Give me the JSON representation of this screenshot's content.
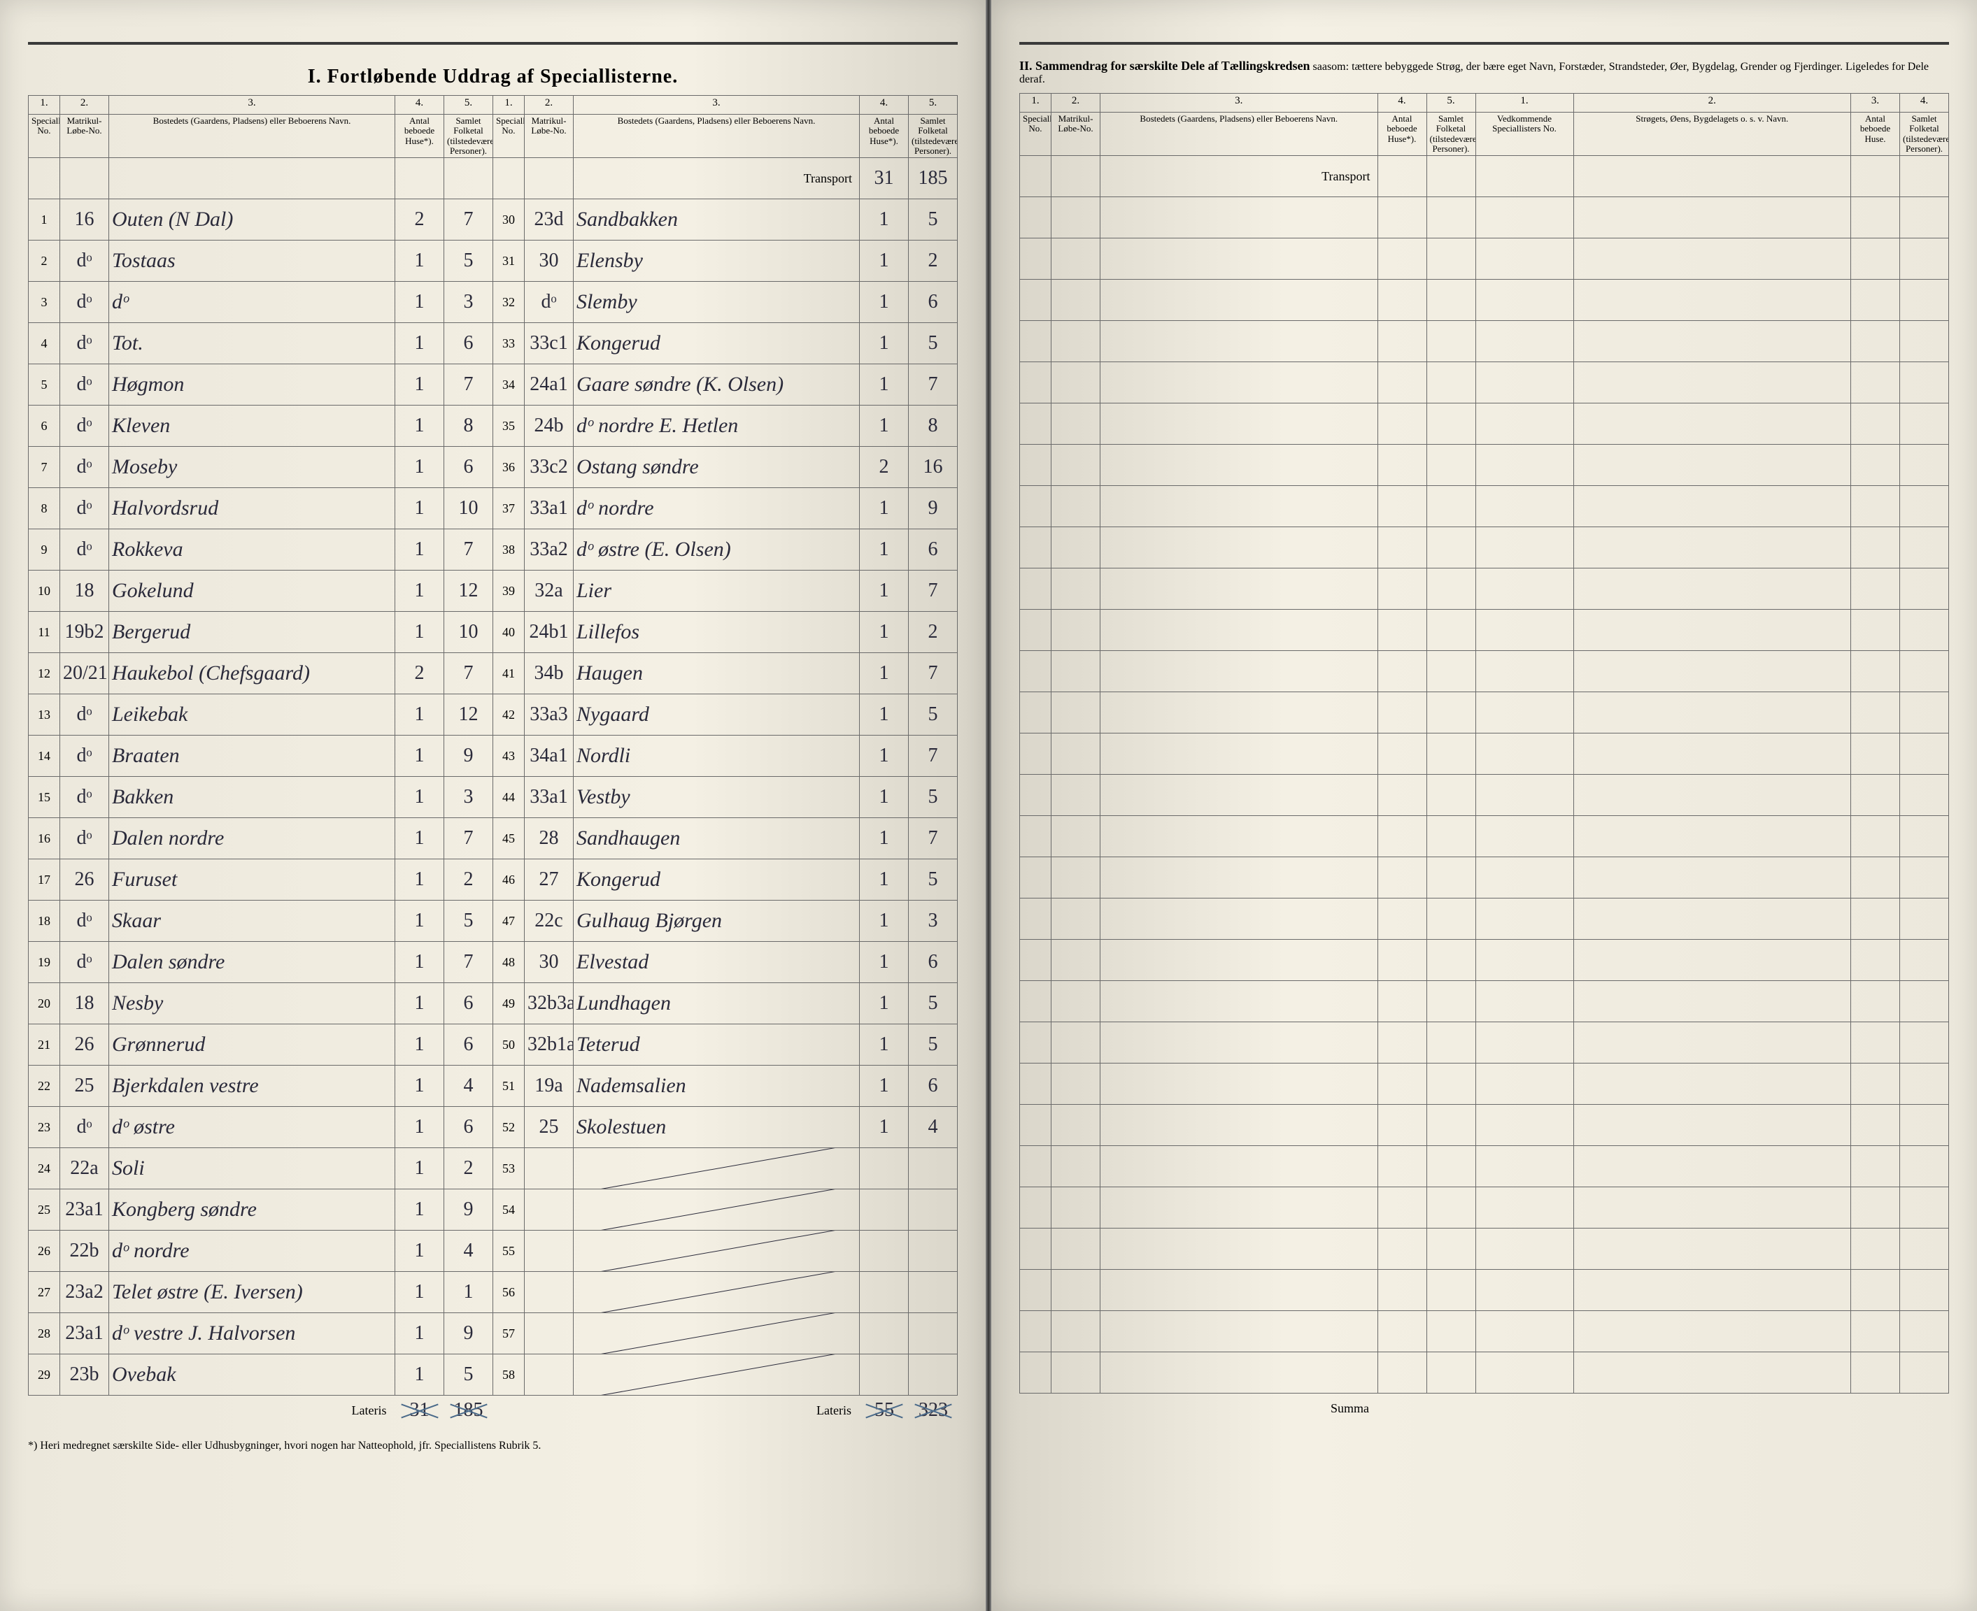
{
  "title_left": "I. Fortløbende Uddrag af Speciallisterne.",
  "title_right_bold": "II. Sammendrag for særskilte Dele af Tællingskredsen",
  "title_right_rest": " saasom: tættere bebyggede Strøg, der bære eget Navn, Forstæder, Strandsteder, Øer, Bygdelag, Grender og Fjerdinger. Ligeledes for Dele deraf.",
  "headers": {
    "c1": "Speciallisternes No.",
    "c2": "Matrikul-Løbe-No.",
    "c3": "Bostedets (Gaardens, Pladsens) eller Beboerens Navn.",
    "c4": "Antal beboede Huse*).",
    "c5": "Samlet Folketal (tilstedeværende Personer).",
    "r1": "Vedkommende Speciallisters No.",
    "r2": "Strøgets, Øens, Bygdelagets o. s. v. Navn.",
    "r3": "Antal beboede Huse.",
    "r4": "Samlet Folketal (tilstedeværende Personer)."
  },
  "transport_label": "Transport",
  "transport_c4": "31",
  "transport_c5": "185",
  "lateris_label": "Lateris",
  "summa_label": "Summa",
  "lateris_left_c4": "31",
  "lateris_left_c5": "185",
  "lateris_mid_c4": "55",
  "lateris_mid_c5": "323",
  "footnote": "*) Heri medregnet særskilte Side- eller Udhusbygninger, hvori nogen har Natteophold, jfr. Speciallistens Rubrik 5.",
  "rows_left": [
    {
      "n": "1",
      "m": "16",
      "name": "Outen (N Dal)",
      "h": "2",
      "p": "7"
    },
    {
      "n": "2",
      "m": "dᵒ",
      "name": "Tostaas",
      "h": "1",
      "p": "5"
    },
    {
      "n": "3",
      "m": "dᵒ",
      "name": "dᵒ",
      "h": "1",
      "p": "3"
    },
    {
      "n": "4",
      "m": "dᵒ",
      "name": "Tot.",
      "h": "1",
      "p": "6"
    },
    {
      "n": "5",
      "m": "dᵒ",
      "name": "Høgmon",
      "h": "1",
      "p": "7"
    },
    {
      "n": "6",
      "m": "dᵒ",
      "name": "Kleven",
      "h": "1",
      "p": "8"
    },
    {
      "n": "7",
      "m": "dᵒ",
      "name": "Moseby",
      "h": "1",
      "p": "6"
    },
    {
      "n": "8",
      "m": "dᵒ",
      "name": "Halvordsrud",
      "h": "1",
      "p": "10"
    },
    {
      "n": "9",
      "m": "dᵒ",
      "name": "Rokkeva",
      "h": "1",
      "p": "7"
    },
    {
      "n": "10",
      "m": "18",
      "name": "Gokelund",
      "h": "1",
      "p": "12"
    },
    {
      "n": "11",
      "m": "19b2",
      "name": "Bergerud",
      "h": "1",
      "p": "10"
    },
    {
      "n": "12",
      "m": "20/21",
      "name": "Haukebol (Chefsgaard)",
      "h": "2",
      "p": "7"
    },
    {
      "n": "13",
      "m": "dᵒ",
      "name": "Leikebak",
      "h": "1",
      "p": "12"
    },
    {
      "n": "14",
      "m": "dᵒ",
      "name": "Braaten",
      "h": "1",
      "p": "9"
    },
    {
      "n": "15",
      "m": "dᵒ",
      "name": "Bakken",
      "h": "1",
      "p": "3"
    },
    {
      "n": "16",
      "m": "dᵒ",
      "name": "Dalen nordre",
      "h": "1",
      "p": "7"
    },
    {
      "n": "17",
      "m": "26",
      "name": "Furuset",
      "h": "1",
      "p": "2"
    },
    {
      "n": "18",
      "m": "dᵒ",
      "name": "Skaar",
      "h": "1",
      "p": "5"
    },
    {
      "n": "19",
      "m": "dᵒ",
      "name": "Dalen søndre",
      "h": "1",
      "p": "7"
    },
    {
      "n": "20",
      "m": "18",
      "name": "Nesby",
      "h": "1",
      "p": "6"
    },
    {
      "n": "21",
      "m": "26",
      "name": "Grønnerud",
      "h": "1",
      "p": "6"
    },
    {
      "n": "22",
      "m": "25",
      "name": "Bjerkdalen vestre",
      "h": "1",
      "p": "4"
    },
    {
      "n": "23",
      "m": "dᵒ",
      "name": "dᵒ østre",
      "h": "1",
      "p": "6"
    },
    {
      "n": "24",
      "m": "22a",
      "name": "Soli",
      "h": "1",
      "p": "2"
    },
    {
      "n": "25",
      "m": "23a1",
      "name": "Kongberg søndre",
      "h": "1",
      "p": "9"
    },
    {
      "n": "26",
      "m": "22b",
      "name": "dᵒ nordre",
      "h": "1",
      "p": "4"
    },
    {
      "n": "27",
      "m": "23a2",
      "name": "Telet østre (E. Iversen)",
      "h": "1",
      "p": "1"
    },
    {
      "n": "28",
      "m": "23a1",
      "name": "dᵒ vestre J. Halvorsen",
      "h": "1",
      "p": "9"
    },
    {
      "n": "29",
      "m": "23b",
      "name": "Ovebak",
      "h": "1",
      "p": "5"
    }
  ],
  "rows_mid": [
    {
      "n": "30",
      "m": "23d",
      "name": "Sandbakken",
      "h": "1",
      "p": "5"
    },
    {
      "n": "31",
      "m": "30",
      "name": "Elensby",
      "h": "1",
      "p": "2"
    },
    {
      "n": "32",
      "m": "dᵒ",
      "name": "Slemby",
      "h": "1",
      "p": "6"
    },
    {
      "n": "33",
      "m": "33c1",
      "name": "Kongerud",
      "h": "1",
      "p": "5"
    },
    {
      "n": "34",
      "m": "24a1",
      "name": "Gaare søndre (K. Olsen)",
      "h": "1",
      "p": "7"
    },
    {
      "n": "35",
      "m": "24b",
      "name": "dᵒ nordre E. Hetlen",
      "h": "1",
      "p": "8"
    },
    {
      "n": "36",
      "m": "33c2",
      "name": "Ostang søndre",
      "h": "2",
      "p": "16"
    },
    {
      "n": "37",
      "m": "33a1",
      "name": "dᵒ nordre",
      "h": "1",
      "p": "9"
    },
    {
      "n": "38",
      "m": "33a2",
      "name": "dᵒ østre (E. Olsen)",
      "h": "1",
      "p": "6"
    },
    {
      "n": "39",
      "m": "32a",
      "name": "Lier",
      "h": "1",
      "p": "7"
    },
    {
      "n": "40",
      "m": "24b1",
      "name": "Lillefos",
      "h": "1",
      "p": "2"
    },
    {
      "n": "41",
      "m": "34b",
      "name": "Haugen",
      "h": "1",
      "p": "7"
    },
    {
      "n": "42",
      "m": "33a3",
      "name": "Nygaard",
      "h": "1",
      "p": "5"
    },
    {
      "n": "43",
      "m": "34a1",
      "name": "Nordli",
      "h": "1",
      "p": "7"
    },
    {
      "n": "44",
      "m": "33a1",
      "name": "Vestby",
      "h": "1",
      "p": "5"
    },
    {
      "n": "45",
      "m": "28",
      "name": "Sandhaugen",
      "h": "1",
      "p": "7"
    },
    {
      "n": "46",
      "m": "27",
      "name": "Kongerud",
      "h": "1",
      "p": "5"
    },
    {
      "n": "47",
      "m": "22c",
      "name": "Gulhaug Bjørgen",
      "h": "1",
      "p": "3"
    },
    {
      "n": "48",
      "m": "30",
      "name": "Elvestad",
      "h": "1",
      "p": "6"
    },
    {
      "n": "49",
      "m": "32b3a",
      "name": "Lundhagen",
      "h": "1",
      "p": "5"
    },
    {
      "n": "50",
      "m": "32b1a",
      "name": "Teterud",
      "h": "1",
      "p": "5"
    },
    {
      "n": "51",
      "m": "19a",
      "name": "Nademsalien",
      "h": "1",
      "p": "6"
    },
    {
      "n": "52",
      "m": "25",
      "name": "Skolestuen",
      "h": "1",
      "p": "4"
    },
    {
      "n": "53",
      "m": "",
      "name": "",
      "h": "",
      "p": ""
    },
    {
      "n": "54",
      "m": "",
      "name": "",
      "h": "",
      "p": ""
    },
    {
      "n": "55",
      "m": "",
      "name": "",
      "h": "",
      "p": ""
    },
    {
      "n": "56",
      "m": "",
      "name": "",
      "h": "",
      "p": ""
    },
    {
      "n": "57",
      "m": "",
      "name": "",
      "h": "",
      "p": ""
    },
    {
      "n": "58",
      "m": "",
      "name": "",
      "h": "",
      "p": ""
    }
  ],
  "colors": {
    "paper": "#f4f0e4",
    "ink_print": "#3a3a3a",
    "ink_hand": "#2a2a3a",
    "rule": "#6a6a6a",
    "cross": "#4a6a8a"
  }
}
